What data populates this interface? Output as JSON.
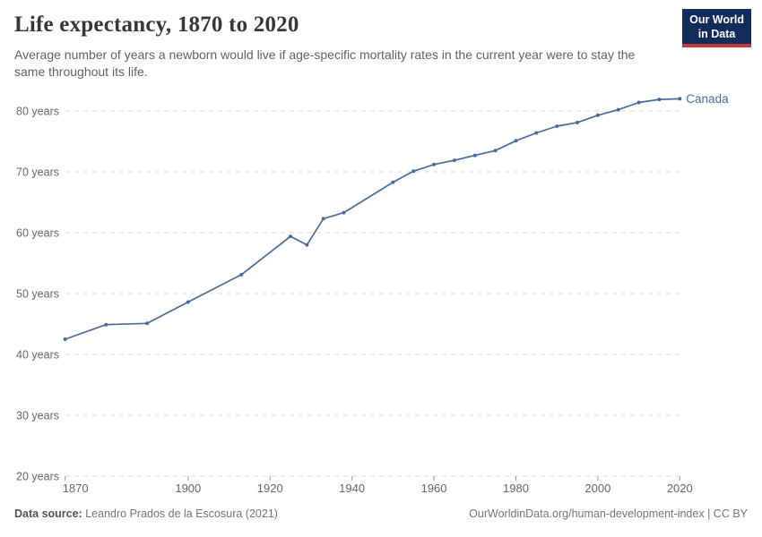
{
  "header": {
    "title": "Life expectancy, 1870 to 2020",
    "subtitle": "Average number of years a newborn would live if age-specific mortality rates in the current year were to stay the same throughout its life.",
    "logo": {
      "line1": "Our World",
      "line2": "in Data",
      "bg": "#132c5a",
      "accent": "#c53a3d"
    }
  },
  "chart_data": {
    "type": "line",
    "title": "Life expectancy, 1870 to 2020",
    "x": [
      1870,
      1880,
      1890,
      1900,
      1913,
      1925,
      1929,
      1933,
      1938,
      1950,
      1955,
      1960,
      1965,
      1970,
      1975,
      1980,
      1985,
      1990,
      1995,
      2000,
      2005,
      2010,
      2015,
      2020
    ],
    "series": [
      {
        "name": "Canada",
        "color": "#4C6A9C",
        "values": [
          42.5,
          44.9,
          45.1,
          48.6,
          53.1,
          59.4,
          58.0,
          62.3,
          63.3,
          68.3,
          70.1,
          71.2,
          71.9,
          72.7,
          73.5,
          75.1,
          76.4,
          77.5,
          78.1,
          79.3,
          80.2,
          81.4,
          81.9,
          82.0
        ]
      }
    ],
    "xlabel": "",
    "ylabel": "",
    "xlim": [
      1870,
      2020
    ],
    "ylim": [
      20,
      80
    ],
    "xticks": [
      1870,
      1900,
      1920,
      1940,
      1960,
      1980,
      2000,
      2020
    ],
    "yticks": [
      20,
      30,
      40,
      50,
      60,
      70,
      80
    ],
    "ytick_suffix": " years",
    "grid": "horizontal-dashed",
    "legend_position": "end-of-line-label",
    "end_label": "Canada",
    "grid_color": "#dadada",
    "axis_text_color": "#666666",
    "tick_color": "#999999"
  },
  "footer": {
    "source_label": "Data source:",
    "source_value": "Leandro Prados de la Escosura (2021)",
    "url": "OurWorldinData.org/human-development-index",
    "separator": "|",
    "license": "CC BY"
  }
}
